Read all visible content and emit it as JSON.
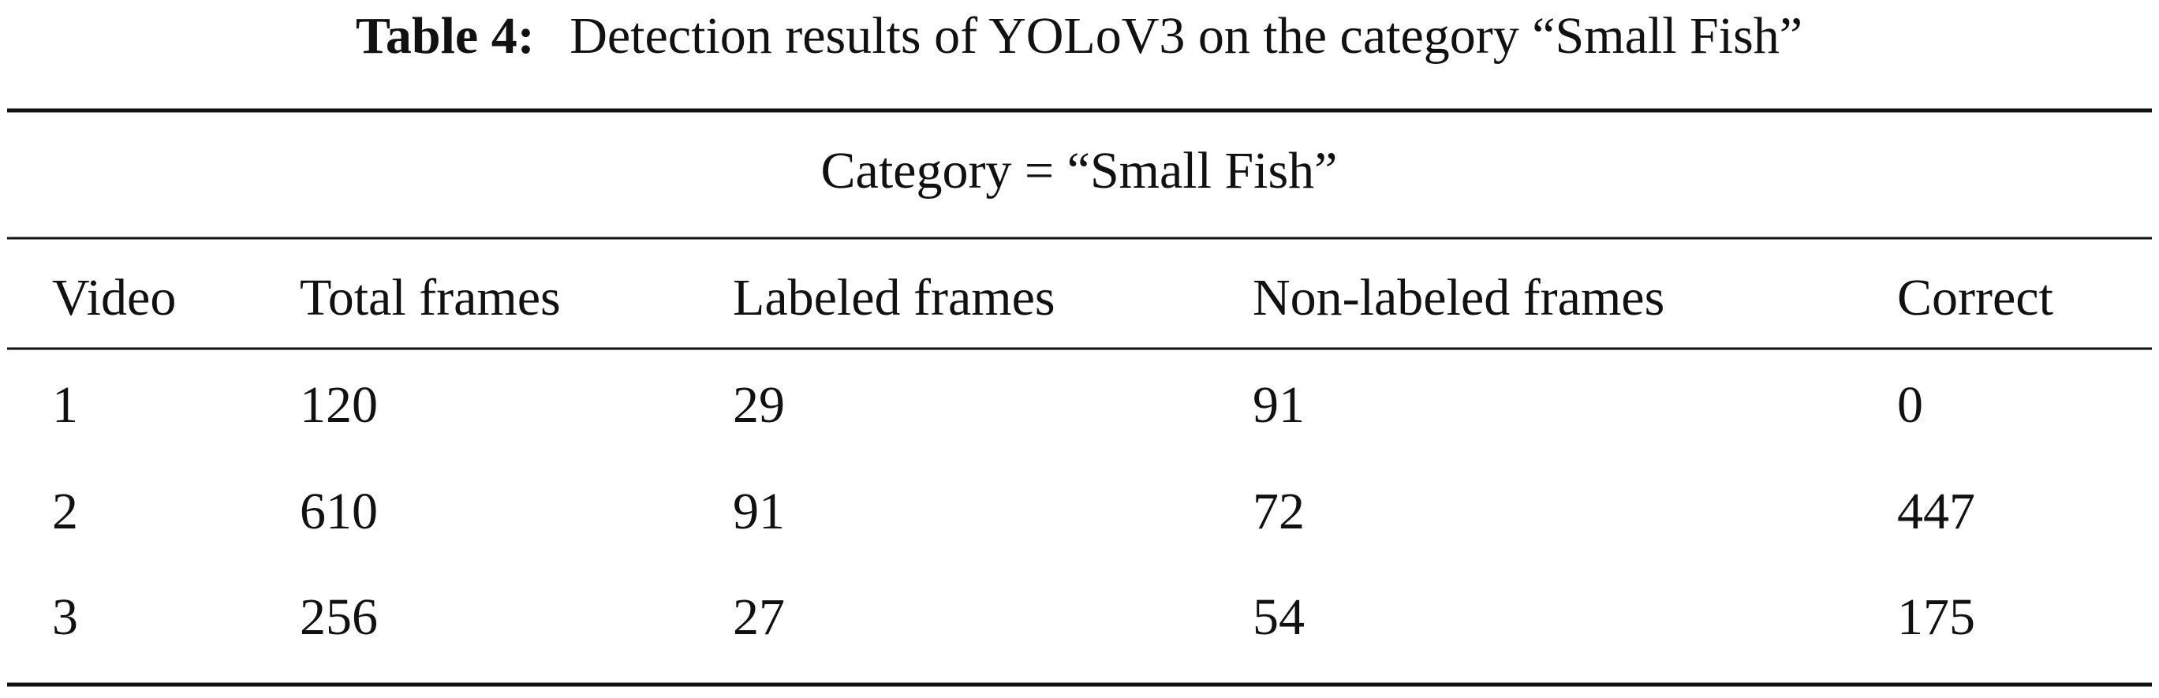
{
  "caption": {
    "label": "Table 4:",
    "text": "Detection results of YOLoV3 on the category “Small Fish”"
  },
  "table": {
    "group_header": "Category = “Small Fish”",
    "columns": [
      "Video",
      "Total frames",
      "Labeled frames",
      "Non-labeled frames",
      "Correct"
    ],
    "rows": [
      [
        1,
        120,
        29,
        91,
        0
      ],
      [
        2,
        610,
        91,
        72,
        447
      ],
      [
        3,
        256,
        27,
        54,
        175
      ]
    ]
  }
}
